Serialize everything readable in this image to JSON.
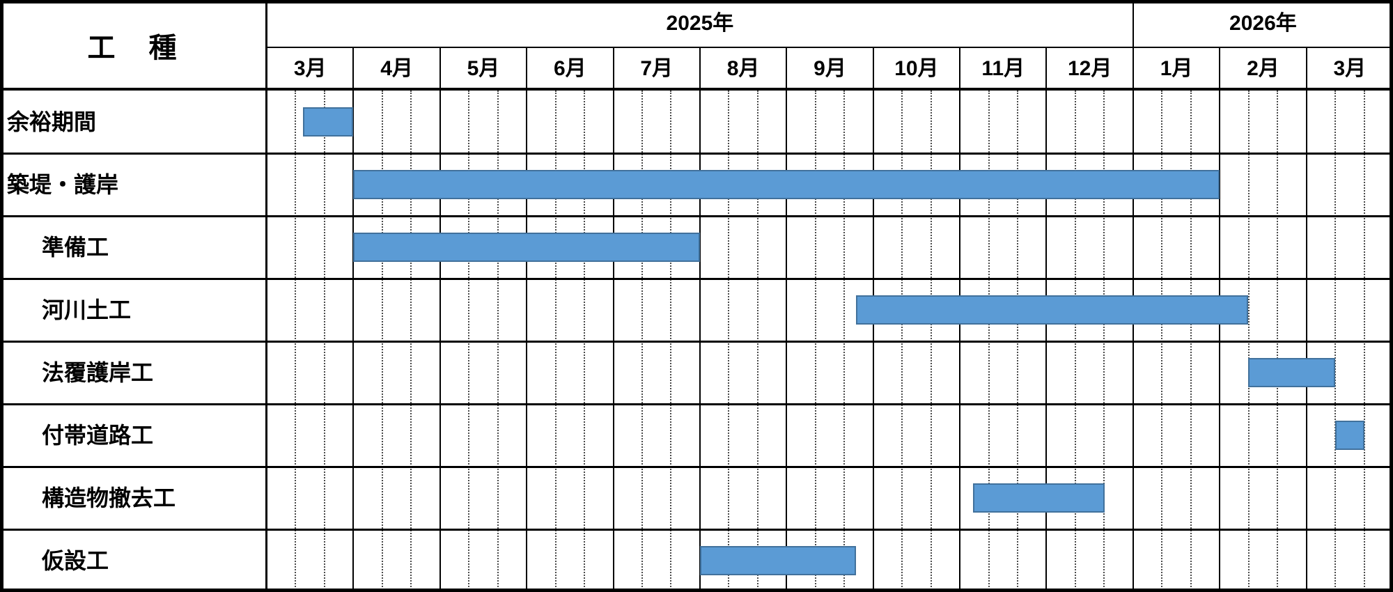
{
  "chart_data": {
    "type": "gantt",
    "corner_label": "工　種",
    "years": [
      {
        "label": "2025年",
        "months": [
          "3月",
          "4月",
          "5月",
          "6月",
          "7月",
          "8月",
          "9月",
          "10月",
          "11月",
          "12月"
        ]
      },
      {
        "label": "2026年",
        "months": [
          "1月",
          "2月",
          "3月"
        ]
      }
    ],
    "month_unit_origin": "2025-03",
    "minor_divisions_per_month": 3,
    "tasks": [
      {
        "label": "余裕期間",
        "indent": false,
        "start": 0.42,
        "end": 1.0
      },
      {
        "label": "築堤・護岸",
        "indent": false,
        "start": 1.0,
        "end": 11.0
      },
      {
        "label": "準備工",
        "indent": true,
        "start": 1.0,
        "end": 5.0
      },
      {
        "label": "河川土工",
        "indent": true,
        "start": 6.8,
        "end": 11.33
      },
      {
        "label": "法覆護岸工",
        "indent": true,
        "start": 11.33,
        "end": 12.33
      },
      {
        "label": "付帯道路工",
        "indent": true,
        "start": 12.33,
        "end": 12.67
      },
      {
        "label": "構造物撤去工",
        "indent": true,
        "start": 8.15,
        "end": 9.67
      },
      {
        "label": "仮設工",
        "indent": true,
        "start": 5.0,
        "end": 6.8
      }
    ],
    "colors": {
      "bar_fill": "#5B9BD5",
      "bar_border": "#41719C",
      "grid_line": "#000000",
      "minor_grid_line": "#4a4a4a",
      "background": "#FFFFFF"
    }
  }
}
